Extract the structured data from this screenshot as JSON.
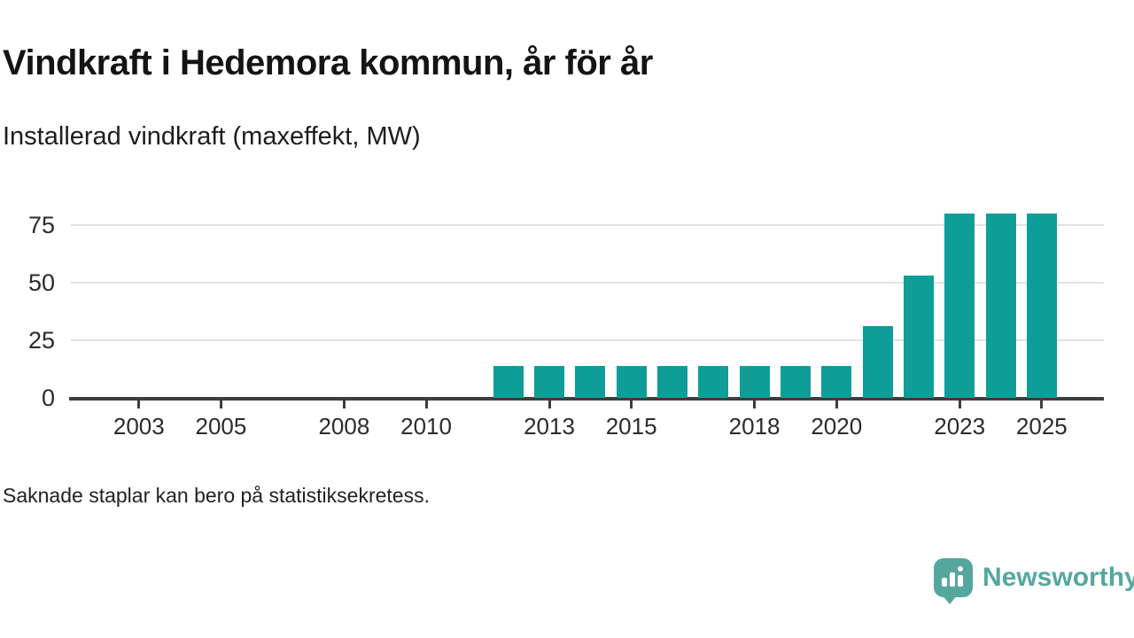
{
  "header": {
    "title": "Vindkraft i Hedemora kommun, år för år",
    "subtitle": "Installerad vindkraft (maxeffekt, MW)"
  },
  "footnote": "Saknade staplar kan bero på statistiksekretess.",
  "branding": {
    "wordmark": "Newsworthy",
    "icon": "newsworthy-speech-bubble-barchart-icon"
  },
  "colors": {
    "bar": "#0f9e97",
    "axis": "#3d3d3d",
    "grid": "#e2e2e2",
    "logo": "#55a79e",
    "title_text": "#141414",
    "tick_text": "#2b2b2b"
  },
  "chart_data": {
    "type": "bar",
    "title": "Vindkraft i Hedemora kommun, år för år",
    "subtitle": "Installerad vindkraft (maxeffekt, MW)",
    "xlabel": "",
    "ylabel": "Installerad vindkraft (maxeffekt, MW)",
    "categories": [
      2012,
      2013,
      2014,
      2015,
      2016,
      2017,
      2018,
      2019,
      2020,
      2021,
      2022,
      2023,
      2024,
      2025
    ],
    "values": [
      14,
      14,
      14,
      14,
      14,
      14,
      14,
      14,
      14,
      31,
      53,
      80,
      80,
      80
    ],
    "missing_categories_before_2012": "no bars shown for 2001-2011",
    "yticks": [
      0,
      25,
      50,
      75
    ],
    "xticks": [
      2003,
      2005,
      2008,
      2010,
      2013,
      2015,
      2018,
      2020,
      2023,
      2025
    ],
    "ylim": [
      0,
      80
    ],
    "xlim": [
      2001,
      2026
    ],
    "grid": "horizontal",
    "legend": "none",
    "unit": "MW"
  }
}
